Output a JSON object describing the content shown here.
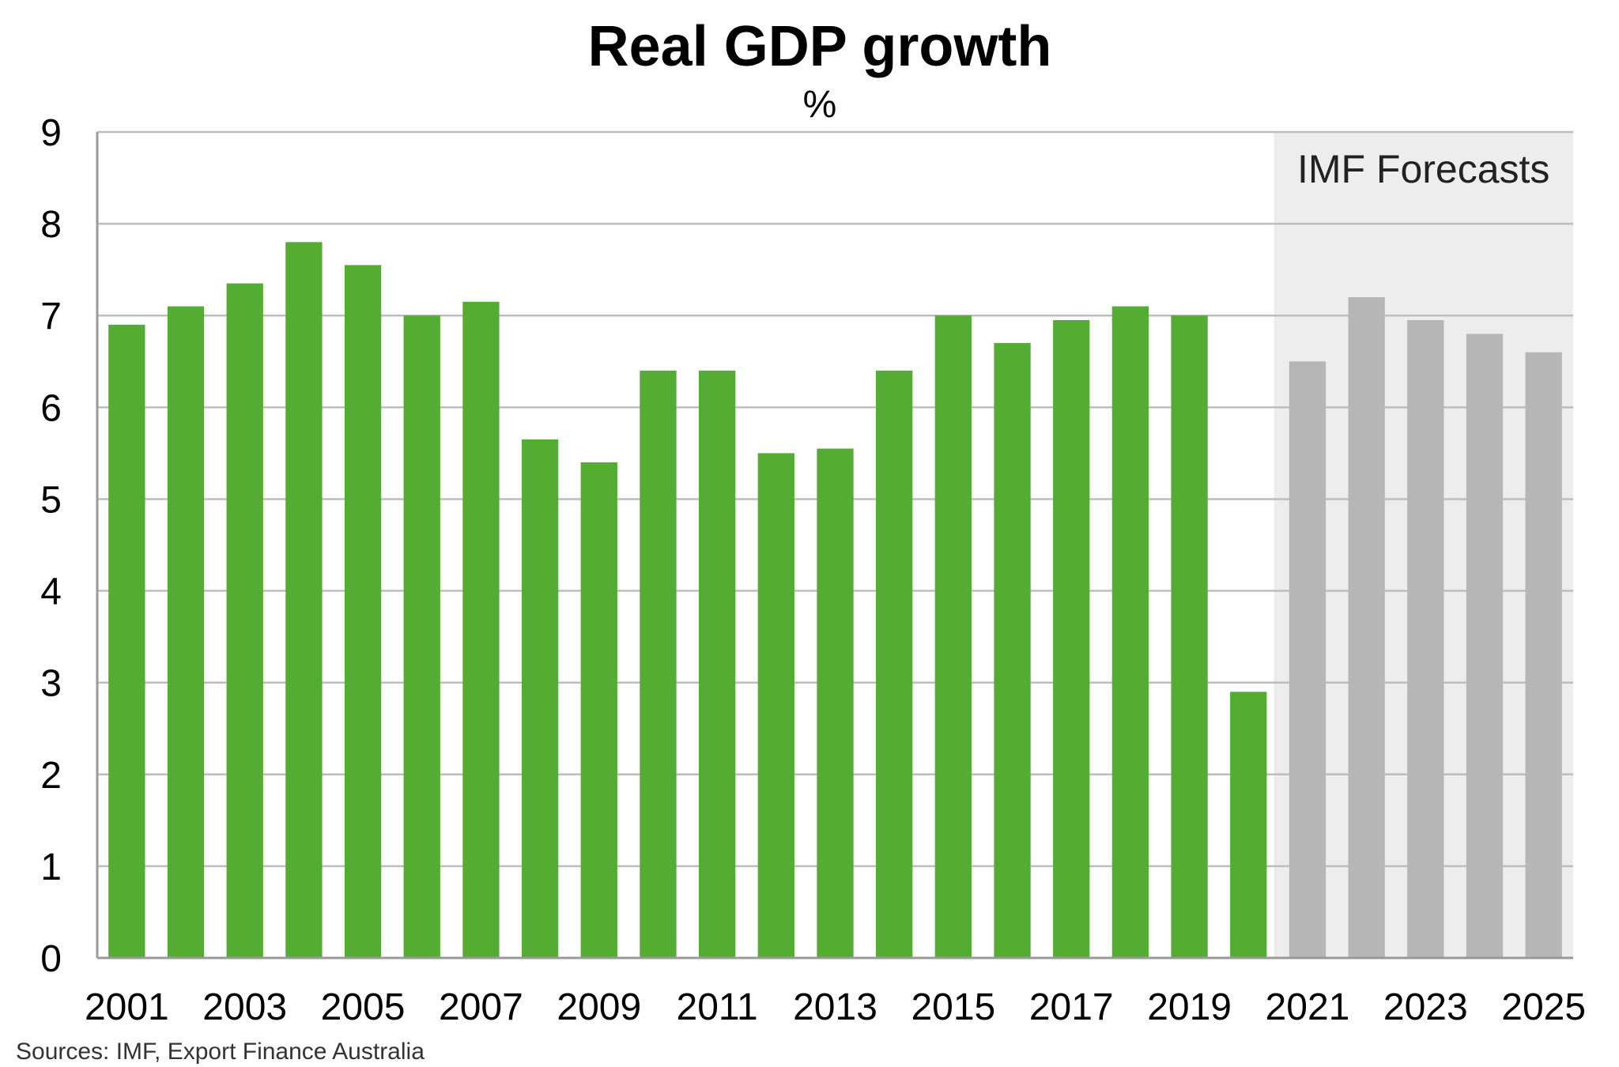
{
  "chart_data": {
    "type": "bar",
    "title": "Real GDP growth",
    "subtitle": "%",
    "xlabel": "",
    "ylabel": "",
    "ylim": [
      0,
      9
    ],
    "yticks": [
      0,
      1,
      2,
      3,
      4,
      5,
      6,
      7,
      8,
      9
    ],
    "categories": [
      "2001",
      "2002",
      "2003",
      "2004",
      "2005",
      "2006",
      "2007",
      "2008",
      "2009",
      "2010",
      "2011",
      "2012",
      "2013",
      "2014",
      "2015",
      "2016",
      "2017",
      "2018",
      "2019",
      "2020",
      "2021",
      "2022",
      "2023",
      "2024",
      "2025"
    ],
    "x_tick_labels": [
      "2001",
      "2003",
      "2005",
      "2007",
      "2009",
      "2011",
      "2013",
      "2015",
      "2017",
      "2019",
      "2021",
      "2023",
      "2025"
    ],
    "values": [
      6.9,
      7.1,
      7.35,
      7.8,
      7.55,
      7.0,
      7.15,
      5.65,
      5.4,
      6.4,
      6.4,
      5.5,
      5.55,
      6.4,
      7.0,
      6.7,
      6.95,
      7.1,
      7.0,
      2.9,
      6.5,
      7.2,
      6.95,
      6.8,
      6.6
    ],
    "forecast_from": "2021",
    "forecast_label": "IMF Forecasts",
    "grid": true,
    "colors": {
      "actual": "#54AD32",
      "forecast": "#B4B6B8",
      "forecast_band": "#EDEDEE",
      "grid": "#BDBDBD"
    }
  },
  "source_note": "Sources: IMF, Export Finance Australia"
}
